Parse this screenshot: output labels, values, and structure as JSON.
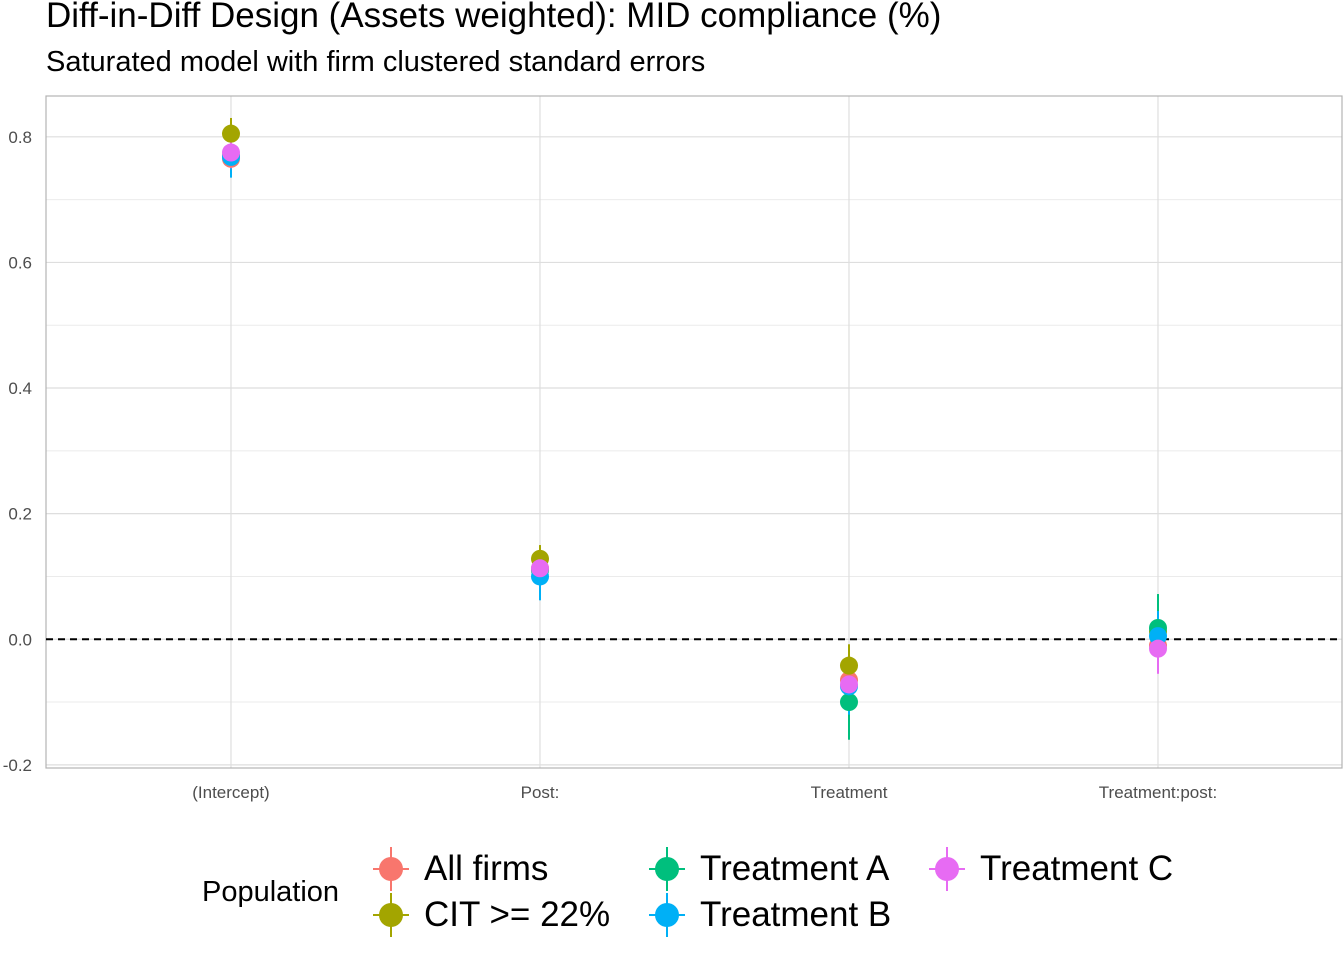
{
  "chart_data": {
    "type": "scatter",
    "title": "Diff-in-Diff Design (Assets weighted): MID compliance (%)",
    "subtitle": "Saturated model with firm clustered standard errors",
    "xlabel": "",
    "ylabel": "",
    "categories": [
      "(Intercept)",
      "Post:",
      "Treatment",
      "Treatment:post:"
    ],
    "ylim": [
      -0.205,
      0.865
    ],
    "yticks": [
      -0.2,
      0.0,
      0.2,
      0.4,
      0.6,
      0.8
    ],
    "ytick_labels": [
      "-0.2",
      "0.0",
      "0.2",
      "0.4",
      "0.6",
      "0.8"
    ],
    "reference_line": {
      "y": 0,
      "style": "dashed"
    },
    "grid": true,
    "legend_title": "Population",
    "legend_position": "bottom",
    "series": [
      {
        "name": "All firms",
        "color": "#F8766D",
        "values": [
          0.765,
          0.113,
          -0.065,
          -0.01
        ],
        "ci_low": [
          0.74,
          0.09,
          -0.1,
          -0.04
        ],
        "ci_high": [
          0.79,
          0.135,
          -0.03,
          0.02
        ]
      },
      {
        "name": "CIT >= 22%",
        "color": "#A3A500",
        "values": [
          0.805,
          0.128,
          -0.042,
          0.012
        ],
        "ci_low": [
          0.78,
          0.105,
          -0.075,
          -0.015
        ],
        "ci_high": [
          0.83,
          0.15,
          -0.008,
          0.04
        ]
      },
      {
        "name": "Treatment A",
        "color": "#00BF7D",
        "values": [
          0.77,
          0.11,
          -0.1,
          0.018
        ],
        "ci_low": [
          0.745,
          0.08,
          -0.16,
          -0.035
        ],
        "ci_high": [
          0.795,
          0.14,
          -0.045,
          0.072
        ]
      },
      {
        "name": "Treatment B",
        "color": "#00B0F6",
        "values": [
          0.768,
          0.1,
          -0.075,
          0.005
        ],
        "ci_low": [
          0.735,
          0.062,
          -0.12,
          -0.035
        ],
        "ci_high": [
          0.8,
          0.135,
          -0.03,
          0.045
        ]
      },
      {
        "name": "Treatment C",
        "color": "#E76BF3",
        "values": [
          0.775,
          0.113,
          -0.072,
          -0.015
        ],
        "ci_low": [
          0.75,
          0.09,
          -0.11,
          -0.055
        ],
        "ci_high": [
          0.8,
          0.136,
          -0.035,
          0.025
        ]
      }
    ]
  }
}
